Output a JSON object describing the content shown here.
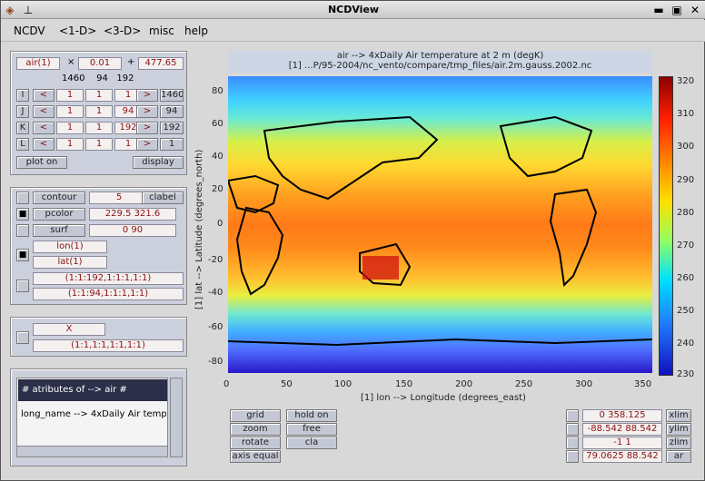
{
  "window": {
    "title": "NCDView"
  },
  "menu": [
    "NCDV",
    "<1-D>",
    "<3-D>",
    "misc",
    "help"
  ],
  "var_panel": {
    "var_name": "air(1)",
    "mult_sign": "×",
    "scale": "0.01",
    "plus_sign": "+",
    "offset": "477.65",
    "dims_summary": "1460    94   192",
    "dim_rows": [
      {
        "dim": "I",
        "start": "1",
        "stride": "1",
        "end": "1",
        "max": "1460"
      },
      {
        "dim": "J",
        "start": "1",
        "stride": "1",
        "end": "94",
        "max": "94"
      },
      {
        "dim": "K",
        "start": "1",
        "stride": "1",
        "end": "192",
        "max": "192"
      },
      {
        "dim": "L",
        "start": "1",
        "stride": "1",
        "end": "1",
        "max": "1"
      }
    ],
    "prev_sym": "<",
    "next_sym": ">",
    "plot_on": "plot on",
    "display": "display"
  },
  "style_panel": {
    "contour_label": "contour",
    "contour_value": "5",
    "clabel": "clabel",
    "pcolor_label": "pcolor",
    "pcolor_value": "229.5  321.6",
    "surf_label": "surf",
    "surf_value": "0  90",
    "x_axis": "lon(1)",
    "y_axis": "lat(1)",
    "range1": "(1:1:192,1:1:1,1:1)",
    "range2": "(1:1:94,1:1:1,1:1)"
  },
  "x_panel": {
    "label": "X",
    "range": "(1:1,1:1,1:1,1:1)"
  },
  "attributes": {
    "header": "#  atributes of --> air  #",
    "line": "long_name --> 4xDaily Air temperat"
  },
  "plot": {
    "title": "air --> 4xDaily Air temperature at 2 m (degK)",
    "subtitle": "[1]  ...P/95-2004/nc_vento/compare/tmp_files/air.2m.gauss.2002.nc",
    "y_ticks": [
      "80",
      "60",
      "40",
      "20",
      "0",
      "-20",
      "-40",
      "-60",
      "-80"
    ],
    "x_ticks": [
      "0",
      "50",
      "100",
      "150",
      "200",
      "250",
      "300",
      "350"
    ],
    "xlabel": "[1]  lon --> Longitude (degrees_east)",
    "ylabel": "[1]  lat --> Latitude (degrees_north)",
    "cbar_ticks": [
      "320",
      "310",
      "300",
      "290",
      "280",
      "270",
      "260",
      "250",
      "240",
      "230"
    ]
  },
  "bottom_buttons": {
    "grid": "grid",
    "hold_on": "hold on",
    "zoom": "zoom",
    "free": "free",
    "rotate": "rotate",
    "cla": "cla",
    "axis_equal": "axis equal"
  },
  "limits": [
    {
      "value": "0  358.125",
      "label": "xlim"
    },
    {
      "value": "-88.542  88.542",
      "label": "ylim"
    },
    {
      "value": "-1  1",
      "label": "zlim"
    },
    {
      "value": "79.0625  88.542",
      "label": "ar"
    }
  ]
}
